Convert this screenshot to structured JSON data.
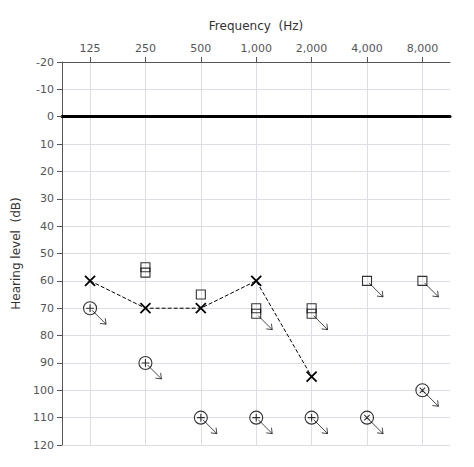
{
  "chart_data": {
    "type": "scatter",
    "xlabel": "Frequency  (Hz)",
    "ylabel": "Hearing level  (dB)",
    "log": "x",
    "grid": true,
    "xlim": [
      88,
      11300
    ],
    "xticks": [
      125,
      250,
      500,
      {
        "value": 1000,
        "label": "1,000"
      },
      {
        "value": 2000,
        "label": "2,000"
      },
      {
        "value": 4000,
        "label": "4,000"
      },
      {
        "value": 8000,
        "label": "8,000"
      }
    ],
    "ylim": [
      -20,
      120
    ],
    "yticks": [
      -20,
      -10,
      0,
      10,
      20,
      30,
      40,
      50,
      60,
      70,
      80,
      90,
      100,
      110,
      120
    ],
    "series": [
      {
        "type": "line",
        "marker": "x",
        "line_style": "dashed",
        "color": "#000000",
        "x": [
          125,
          250,
          500,
          1000,
          2000
        ],
        "values": [
          60,
          70,
          70,
          60,
          95
        ]
      },
      {
        "type": "scatter",
        "marker": "square",
        "color": "#000000",
        "x": [
          250,
          250,
          500,
          1000,
          2000
        ],
        "values": [
          55,
          57,
          65,
          70,
          70
        ]
      },
      {
        "type": "scatter",
        "marker": "square_arrow",
        "color": "#000000",
        "x": [
          1000,
          2000,
          4000,
          8000
        ],
        "values": [
          72,
          72,
          60,
          60
        ]
      },
      {
        "type": "scatter",
        "marker": "circle_plus_arrow",
        "color": "#000000",
        "x": [
          125,
          250,
          500,
          1000,
          2000
        ],
        "values": [
          70,
          90,
          110,
          110,
          110
        ]
      },
      {
        "type": "scatter",
        "marker": "circle_x_arrow",
        "color": "#000000",
        "x": [
          4000,
          8000
        ],
        "values": [
          110,
          100
        ]
      }
    ]
  }
}
